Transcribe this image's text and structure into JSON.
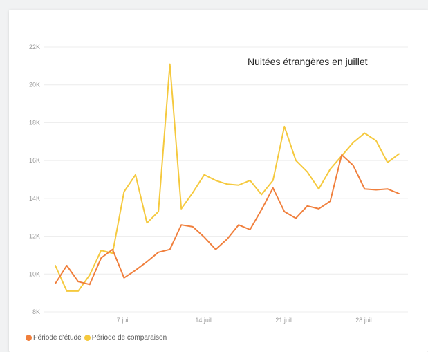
{
  "chart_data": {
    "type": "line",
    "title": "Nuitées étrangères en juillet",
    "xlabel": "",
    "ylabel": "",
    "x": [
      1,
      2,
      3,
      4,
      5,
      6,
      7,
      8,
      9,
      10,
      11,
      12,
      13,
      14,
      15,
      16,
      17,
      18,
      19,
      20,
      21,
      22,
      23,
      24,
      25,
      26,
      27,
      28,
      29,
      30,
      31
    ],
    "xlim": [
      1,
      31
    ],
    "ylim": [
      8000,
      22000
    ],
    "y_ticks": [
      8000,
      10000,
      12000,
      14000,
      16000,
      18000,
      20000,
      22000
    ],
    "y_tick_labels": [
      "8K",
      "10K",
      "12K",
      "14K",
      "16K",
      "18K",
      "20K",
      "22K"
    ],
    "x_ticks": [
      7,
      14,
      21,
      28
    ],
    "x_tick_labels": [
      "7 juil.",
      "14 juil.",
      "21 juil.",
      "28 juil."
    ],
    "grid": true,
    "legend_position": "bottom-left",
    "series": [
      {
        "name": "Période d'étude",
        "color": "#f07f3c",
        "values": [
          9500,
          10450,
          9600,
          9450,
          10850,
          11300,
          9800,
          10200,
          10650,
          11150,
          11300,
          12600,
          12500,
          11950,
          11300,
          11850,
          12600,
          12350,
          13400,
          14550,
          13300,
          12950,
          13600,
          13450,
          13850,
          16300,
          15750,
          14500,
          14450,
          14500,
          14250
        ]
      },
      {
        "name": "Période de comparaison",
        "color": "#f5c93e",
        "values": [
          10450,
          9100,
          9100,
          9950,
          11250,
          11100,
          14350,
          15250,
          12700,
          13300,
          21100,
          13450,
          14300,
          15250,
          14950,
          14750,
          14700,
          14950,
          14200,
          14950,
          17800,
          16000,
          15400,
          14500,
          15550,
          16250,
          16950,
          17450,
          17050,
          15900,
          16350
        ]
      }
    ]
  }
}
